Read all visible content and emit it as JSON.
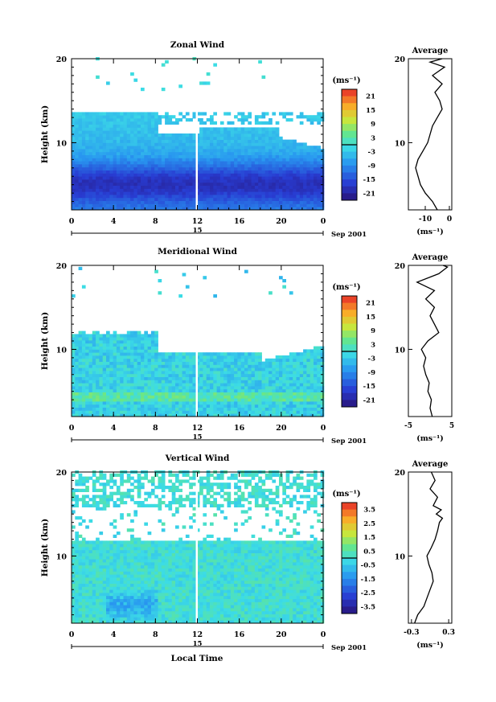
{
  "figure": {
    "time_axis_label": "Local Time",
    "date_label": "Sep 2001",
    "day_label": "15",
    "average_title": "Average",
    "unit": "(ms⁻¹)"
  },
  "chart_data": [
    {
      "type": "heatmap",
      "title": "Zonal Wind",
      "xlabel": "",
      "ylabel": "Height (km)",
      "x_ticks": [
        "0",
        "4",
        "8",
        "12",
        "16",
        "20",
        "0"
      ],
      "y_ticks": [
        "10",
        "20"
      ],
      "xlim": [
        0,
        24
      ],
      "ylim": [
        2,
        20
      ],
      "colorbar": {
        "label": "(ms⁻¹)",
        "ticks": [
          "21",
          "15",
          "9",
          "3",
          "-3",
          "-9",
          "-15",
          "-21"
        ],
        "range": [
          -24,
          24
        ]
      },
      "profile": {
        "title": "Average",
        "xlabel": "(ms⁻¹)",
        "x_ticks": [
          "-10",
          "0"
        ],
        "xlim": [
          -17,
          1
        ],
        "points": [
          [
            -5,
            2
          ],
          [
            -7,
            3
          ],
          [
            -10,
            4
          ],
          [
            -12,
            5
          ],
          [
            -13,
            6
          ],
          [
            -14,
            7
          ],
          [
            -13,
            8
          ],
          [
            -11,
            9
          ],
          [
            -9,
            10
          ],
          [
            -8,
            11
          ],
          [
            -7,
            12
          ],
          [
            -5,
            13
          ],
          [
            -3,
            14
          ],
          [
            -4,
            15
          ],
          [
            -6,
            16
          ],
          [
            -3,
            17
          ],
          [
            -7,
            18
          ],
          [
            -2,
            19
          ],
          [
            -8,
            19.6
          ],
          [
            -3,
            20
          ]
        ]
      }
    },
    {
      "type": "heatmap",
      "title": "Meridional Wind",
      "xlabel": "",
      "ylabel": "Height (km)",
      "x_ticks": [
        "0",
        "4",
        "8",
        "12",
        "16",
        "20",
        "0"
      ],
      "y_ticks": [
        "10",
        "20"
      ],
      "xlim": [
        0,
        24
      ],
      "ylim": [
        2,
        20
      ],
      "colorbar": {
        "label": "(ms⁻¹)",
        "ticks": [
          "21",
          "15",
          "9",
          "3",
          "-3",
          "-9",
          "-15",
          "-21"
        ],
        "range": [
          -24,
          24
        ]
      },
      "profile": {
        "title": "Average",
        "xlabel": "(ms⁻¹)",
        "x_ticks": [
          "-5",
          "5"
        ],
        "xlim": [
          -5,
          5
        ],
        "points": [
          [
            0.5,
            2
          ],
          [
            0,
            3
          ],
          [
            0.3,
            4
          ],
          [
            -0.5,
            5
          ],
          [
            -0.2,
            6
          ],
          [
            -1,
            7
          ],
          [
            -1.5,
            8
          ],
          [
            -1,
            9
          ],
          [
            -2,
            10
          ],
          [
            -0.5,
            11
          ],
          [
            2,
            12
          ],
          [
            1,
            13
          ],
          [
            0,
            14
          ],
          [
            1,
            15
          ],
          [
            -1,
            16
          ],
          [
            1,
            17
          ],
          [
            -3,
            18
          ],
          [
            2,
            19
          ],
          [
            4,
            19.8
          ],
          [
            3,
            20
          ]
        ]
      }
    },
    {
      "type": "heatmap",
      "title": "Vertical Wind",
      "xlabel": "Local Time",
      "ylabel": "Height (km)",
      "x_ticks": [
        "0",
        "4",
        "8",
        "12",
        "16",
        "20",
        "0"
      ],
      "y_ticks": [
        "10",
        "20"
      ],
      "xlim": [
        0,
        24
      ],
      "ylim": [
        2,
        20
      ],
      "colorbar": {
        "label": "(ms⁻¹)",
        "ticks": [
          "3.5",
          "2.5",
          "1.5",
          "0.5",
          "-0.5",
          "-1.5",
          "-2.5",
          "-3.5"
        ],
        "range": [
          -4,
          4
        ]
      },
      "profile": {
        "title": "Average",
        "xlabel": "(ms⁻¹)",
        "x_ticks": [
          "-0.3",
          "0.3"
        ],
        "xlim": [
          -0.35,
          0.35
        ],
        "points": [
          [
            -0.25,
            2
          ],
          [
            -0.2,
            3
          ],
          [
            -0.1,
            4
          ],
          [
            -0.05,
            5
          ],
          [
            0,
            6
          ],
          [
            0.05,
            7
          ],
          [
            0.03,
            8
          ],
          [
            -0.02,
            9
          ],
          [
            -0.05,
            10
          ],
          [
            0.02,
            11
          ],
          [
            0.08,
            12
          ],
          [
            0.12,
            13
          ],
          [
            0.15,
            14
          ],
          [
            0.2,
            14.5
          ],
          [
            0.1,
            15
          ],
          [
            0.18,
            15.5
          ],
          [
            0.05,
            16
          ],
          [
            0.12,
            17
          ],
          [
            0,
            18
          ],
          [
            0.08,
            19
          ],
          [
            0.02,
            20
          ]
        ]
      }
    }
  ]
}
